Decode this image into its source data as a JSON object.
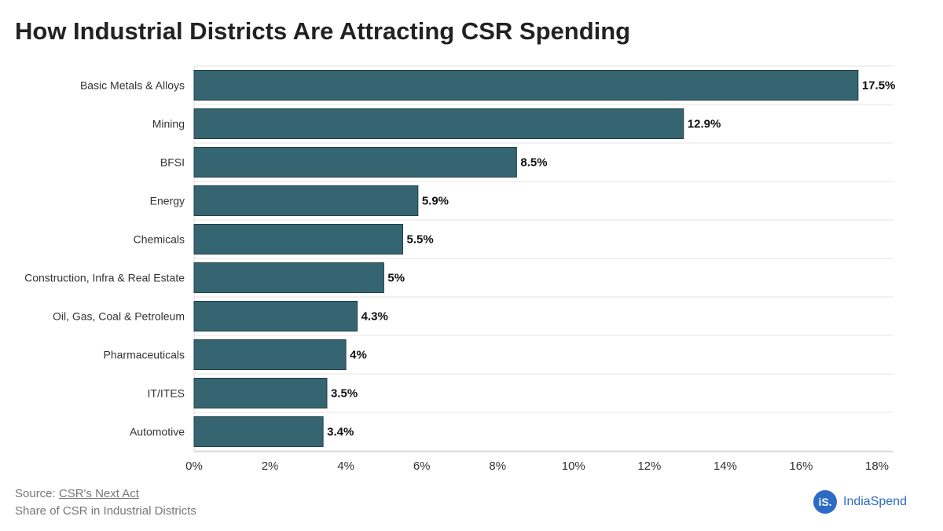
{
  "title": "How Industrial Districts Are Attracting CSR Spending",
  "footer": {
    "source_prefix": "Source: ",
    "source_link": "CSR's Next Act",
    "note": "Share of CSR in Industrial Districts",
    "brand": "IndiaSpend",
    "brand_mark": "iS."
  },
  "colors": {
    "bar": "#356570",
    "bar_stroke": "#1f3f47",
    "grid": "#e6e6e6"
  },
  "chart_data": {
    "type": "bar",
    "orientation": "horizontal",
    "categories": [
      "Basic Metals & Alloys",
      "Mining",
      "BFSI",
      "Energy",
      "Chemicals",
      "Construction, Infra & Real Estate",
      "Oil, Gas, Coal & Petroleum",
      "Pharmaceuticals",
      "IT/ITES",
      "Automotive"
    ],
    "values": [
      17.5,
      12.9,
      8.5,
      5.9,
      5.5,
      5,
      4.3,
      4,
      3.5,
      3.4
    ],
    "data_labels": [
      "17.5%",
      "12.9%",
      "8.5%",
      "5.9%",
      "5.5%",
      "5%",
      "4.3%",
      "4%",
      "3.5%",
      "3.4%"
    ],
    "xlim": [
      0,
      18
    ],
    "xticks": [
      0,
      2,
      4,
      6,
      8,
      10,
      12,
      14,
      16,
      18
    ],
    "xtick_labels": [
      "0%",
      "2%",
      "4%",
      "6%",
      "8%",
      "10%",
      "12%",
      "14%",
      "16%",
      "18%"
    ],
    "grid": true
  }
}
